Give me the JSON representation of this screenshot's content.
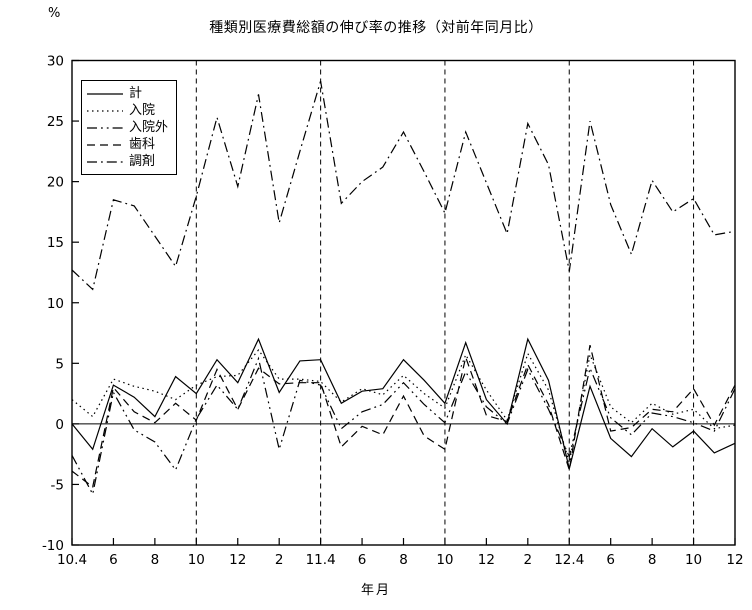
{
  "page": {
    "title": "種類別医療費総額の伸び率の推移（対前年同月比）",
    "y_unit_label": "%",
    "x_axis_title": "年月"
  },
  "chart_data": {
    "type": "line",
    "title": "種類別医療費総額の伸び率の推移（対前年同月比）",
    "xlabel": "年月",
    "ylabel": "%",
    "ylim": [
      -10,
      30
    ],
    "ytick_step": 5,
    "n_points": 33,
    "x_start_label": "10.4",
    "x_tick_labels": [
      {
        "index": 0,
        "label": "10.4"
      },
      {
        "index": 2,
        "label": "6"
      },
      {
        "index": 4,
        "label": "8"
      },
      {
        "index": 6,
        "label": "10"
      },
      {
        "index": 8,
        "label": "12"
      },
      {
        "index": 10,
        "label": "2"
      },
      {
        "index": 12,
        "label": "11.4"
      },
      {
        "index": 14,
        "label": "6"
      },
      {
        "index": 16,
        "label": "8"
      },
      {
        "index": 18,
        "label": "10"
      },
      {
        "index": 20,
        "label": "12"
      },
      {
        "index": 22,
        "label": "2"
      },
      {
        "index": 24,
        "label": "12.4"
      },
      {
        "index": 26,
        "label": "6"
      },
      {
        "index": 28,
        "label": "8"
      },
      {
        "index": 30,
        "label": "10"
      },
      {
        "index": 32,
        "label": "12"
      }
    ],
    "gridline_indices": [
      6,
      12,
      18,
      24,
      30
    ],
    "zero_line": true,
    "grid": "vertical-dashed-only",
    "legend_position": "upper-left",
    "line_color": "#000000",
    "background_color": "#ffffff",
    "series": [
      {
        "name": "計",
        "id": "total",
        "pattern": "solid",
        "values": [
          0.0,
          -2.1,
          3.2,
          2.2,
          0.6,
          3.9,
          2.5,
          5.3,
          3.4,
          7.0,
          2.6,
          5.2,
          5.3,
          1.7,
          2.7,
          2.9,
          5.3,
          3.6,
          1.7,
          6.7,
          2.0,
          0.0,
          7.0,
          3.6,
          -3.7,
          3.1,
          -1.2,
          -2.7,
          -0.4,
          -1.9,
          -0.6,
          -2.4,
          -1.6
        ]
      },
      {
        "name": "入院",
        "id": "inpatient",
        "pattern": "dotted",
        "values": [
          2.0,
          0.6,
          3.7,
          3.1,
          2.7,
          2.0,
          3.2,
          3.9,
          4.0,
          6.1,
          3.7,
          3.7,
          3.5,
          1.8,
          2.9,
          2.4,
          4.0,
          2.5,
          1.3,
          5.7,
          2.8,
          0.3,
          5.8,
          2.8,
          -3.2,
          5.7,
          1.4,
          0.1,
          1.7,
          0.8,
          1.2,
          -0.4,
          -0.1
        ]
      },
      {
        "name": "入院外",
        "id": "outpatient",
        "pattern": "dash-dot-dot",
        "values": [
          -2.6,
          -5.8,
          2.6,
          -0.5,
          -1.5,
          -3.8,
          0.4,
          3.2,
          1.2,
          5.4,
          -2.1,
          3.6,
          3.2,
          -0.4,
          1.0,
          1.6,
          3.4,
          1.6,
          0.1,
          4.3,
          1.4,
          0.0,
          4.5,
          1.2,
          -2.7,
          4.6,
          0.5,
          -0.9,
          0.9,
          0.6,
          0.1,
          -0.6,
          2.9
        ]
      },
      {
        "name": "歯科",
        "id": "dental",
        "pattern": "dashed",
        "values": [
          -3.9,
          -5.2,
          3.0,
          1.0,
          0.1,
          1.7,
          0.3,
          4.5,
          1.2,
          4.6,
          3.3,
          3.4,
          3.4,
          -1.9,
          -0.2,
          -0.9,
          2.3,
          -1.0,
          -2.1,
          5.5,
          0.7,
          0.2,
          4.9,
          1.6,
          -3.8,
          6.5,
          -0.6,
          -0.3,
          1.2,
          1.0,
          2.9,
          -0.1,
          3.2
        ]
      },
      {
        "name": "調剤",
        "id": "pharmacy",
        "pattern": "dash-dot",
        "values": [
          12.7,
          11.1,
          18.5,
          18.0,
          15.5,
          13.0,
          18.8,
          25.3,
          19.6,
          27.2,
          16.6,
          22.5,
          28.3,
          18.2,
          20.0,
          21.2,
          24.1,
          20.8,
          17.4,
          24.1,
          19.9,
          15.7,
          24.8,
          21.4,
          12.6,
          25.0,
          18.1,
          14.0,
          20.1,
          17.5,
          18.6,
          15.6,
          15.9
        ]
      }
    ]
  }
}
